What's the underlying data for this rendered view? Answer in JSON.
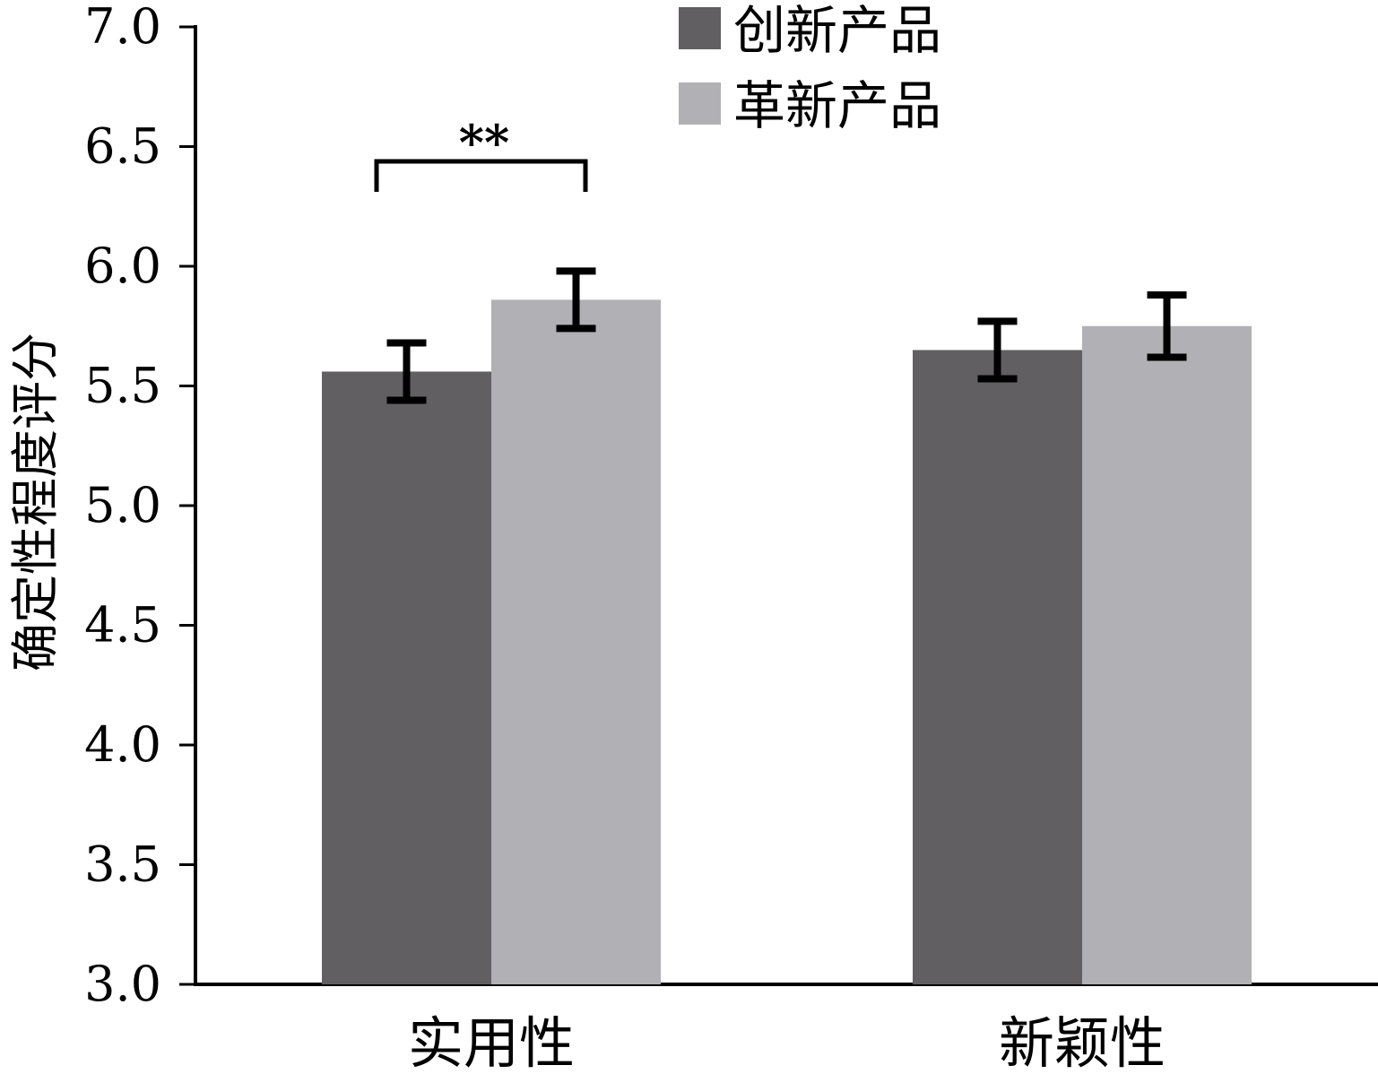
{
  "chart_data": {
    "type": "bar",
    "title": "",
    "xlabel": "",
    "ylabel": "确定性程度评分",
    "ylim": [
      3.0,
      7.0
    ],
    "yticks": [
      "3.0",
      "3.5",
      "4.0",
      "4.5",
      "5.0",
      "5.5",
      "6.0",
      "6.5",
      "7.0"
    ],
    "categories": [
      "实用性",
      "新颖性"
    ],
    "series": [
      {
        "name": "创新产品",
        "color": "#615f62",
        "values": [
          5.56,
          5.65
        ],
        "errors": [
          0.12,
          0.12
        ]
      },
      {
        "name": "革新产品",
        "color": "#b1b0b4",
        "values": [
          5.86,
          5.75
        ],
        "errors": [
          0.12,
          0.13
        ]
      }
    ],
    "annotations": [
      {
        "text": "**",
        "category": "实用性"
      }
    ],
    "legend_position": "top"
  }
}
